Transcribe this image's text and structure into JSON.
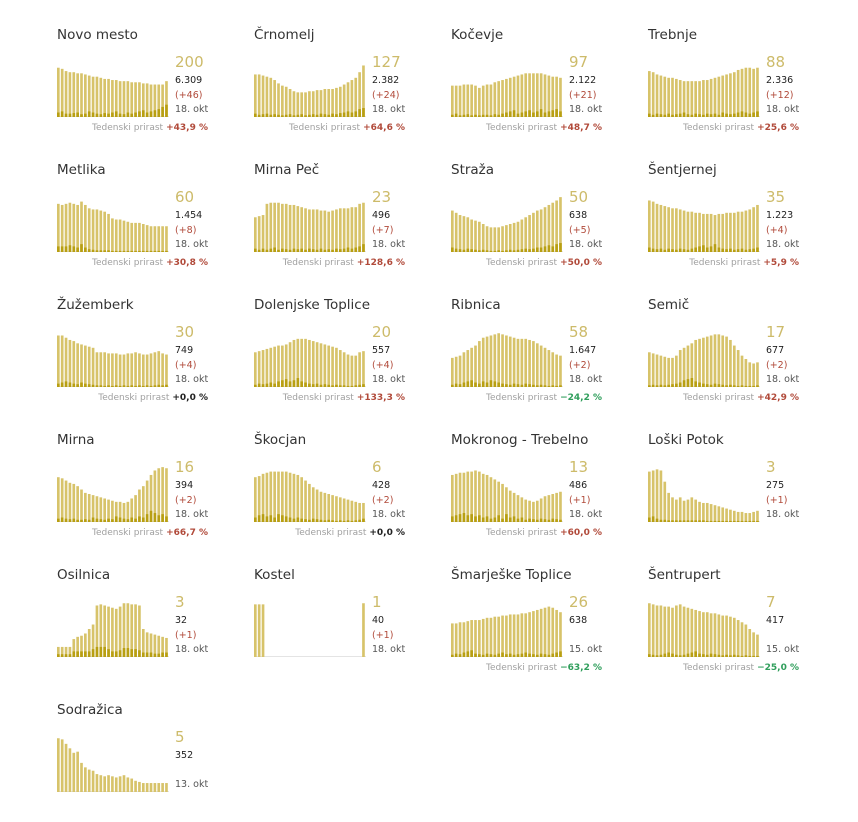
{
  "colors": {
    "bar_total": "#d7c36a",
    "bar_new": "#b89f12",
    "active_text": "#cdbb6a",
    "delta_up": "#b14a3a",
    "delta_down": "#2f9e5b"
  },
  "weekly_label": "Tedenski prirast",
  "municipalities": [
    {
      "name": "Novo mesto",
      "active": "200",
      "total": "6.309",
      "delta": "(+46)",
      "date": "18. okt",
      "weekly": "+43,9 %",
      "trend": "up",
      "bars": [
        88,
        86,
        82,
        80,
        80,
        78,
        78,
        76,
        74,
        72,
        72,
        70,
        68,
        68,
        66,
        66,
        64,
        64,
        64,
        62,
        62,
        62,
        60,
        60,
        58,
        58,
        58,
        58,
        64
      ],
      "new": [
        8,
        10,
        6,
        6,
        7,
        8,
        5,
        6,
        10,
        8,
        6,
        5,
        7,
        6,
        8,
        10,
        6,
        5,
        8,
        6,
        8,
        10,
        12,
        8,
        10,
        12,
        14,
        18,
        22
      ]
    },
    {
      "name": "Črnomelj",
      "active": "127",
      "total": "2.382",
      "delta": "(+24)",
      "date": "18. okt",
      "weekly": "+64,6 %",
      "trend": "up",
      "bars": [
        76,
        76,
        74,
        72,
        70,
        66,
        60,
        56,
        54,
        50,
        46,
        44,
        44,
        44,
        46,
        46,
        48,
        48,
        50,
        50,
        50,
        52,
        54,
        58,
        62,
        66,
        70,
        80,
        92
      ],
      "new": [
        6,
        4,
        5,
        6,
        4,
        5,
        4,
        3,
        4,
        5,
        3,
        4,
        5,
        3,
        4,
        5,
        4,
        6,
        5,
        4,
        6,
        5,
        7,
        8,
        10,
        8,
        10,
        14,
        16
      ]
    },
    {
      "name": "Kočevje",
      "active": "97",
      "total": "2.122",
      "delta": "(+21)",
      "date": "18. okt",
      "weekly": "+48,7 %",
      "trend": "up",
      "bars": [
        56,
        56,
        56,
        58,
        58,
        58,
        56,
        52,
        56,
        58,
        58,
        62,
        64,
        66,
        68,
        70,
        72,
        74,
        76,
        78,
        78,
        78,
        78,
        78,
        76,
        74,
        72,
        72,
        70
      ],
      "new": [
        4,
        6,
        3,
        4,
        5,
        3,
        4,
        3,
        4,
        4,
        3,
        5,
        4,
        6,
        8,
        10,
        12,
        6,
        8,
        10,
        12,
        8,
        10,
        14,
        8,
        10,
        12,
        14,
        10
      ]
    },
    {
      "name": "Trebnje",
      "active": "88",
      "total": "2.336",
      "delta": "(+12)",
      "date": "18. okt",
      "weekly": "+25,6 %",
      "trend": "up",
      "bars": [
        82,
        80,
        76,
        74,
        72,
        70,
        70,
        68,
        66,
        64,
        64,
        64,
        64,
        64,
        66,
        66,
        68,
        70,
        72,
        74,
        76,
        78,
        80,
        84,
        86,
        88,
        88,
        86,
        88
      ],
      "new": [
        6,
        4,
        6,
        5,
        4,
        6,
        4,
        5,
        6,
        8,
        5,
        4,
        6,
        5,
        4,
        6,
        5,
        6,
        4,
        8,
        6,
        5,
        6,
        8,
        10,
        8,
        6,
        8,
        10
      ]
    },
    {
      "name": "Metlika",
      "active": "60",
      "total": "1.454",
      "delta": "(+8)",
      "date": "18. okt",
      "weekly": "+30,8 %",
      "trend": "up",
      "bars": [
        86,
        84,
        86,
        88,
        86,
        84,
        90,
        84,
        78,
        76,
        76,
        74,
        72,
        68,
        60,
        58,
        58,
        56,
        54,
        52,
        52,
        52,
        50,
        48,
        46,
        46,
        46,
        46,
        46
      ],
      "new": [
        10,
        10,
        10,
        12,
        10,
        8,
        14,
        8,
        5,
        4,
        3,
        3,
        3,
        3,
        2,
        2,
        2,
        2,
        2,
        2,
        2,
        2,
        2,
        2,
        2,
        2,
        2,
        2,
        2
      ]
    },
    {
      "name": "Mirna Peč",
      "active": "23",
      "total": "496",
      "delta": "(+7)",
      "date": "18. okt",
      "weekly": "+128,6 %",
      "trend": "up",
      "bars": [
        62,
        64,
        66,
        86,
        88,
        88,
        88,
        86,
        86,
        84,
        84,
        82,
        80,
        78,
        76,
        76,
        76,
        74,
        74,
        72,
        74,
        76,
        78,
        78,
        78,
        80,
        80,
        86,
        88
      ],
      "new": [
        6,
        4,
        6,
        4,
        6,
        8,
        4,
        6,
        5,
        4,
        6,
        5,
        6,
        4,
        6,
        5,
        4,
        6,
        4,
        5,
        4,
        6,
        5,
        6,
        8,
        6,
        8,
        10,
        14
      ]
    },
    {
      "name": "Straža",
      "active": "50",
      "total": "638",
      "delta": "(+5)",
      "date": "18. okt",
      "weekly": "+50,0 %",
      "trend": "up",
      "bars": [
        74,
        70,
        66,
        64,
        62,
        58,
        56,
        54,
        50,
        46,
        44,
        44,
        44,
        46,
        48,
        50,
        52,
        54,
        58,
        62,
        66,
        70,
        74,
        76,
        80,
        84,
        88,
        92,
        98
      ],
      "new": [
        8,
        6,
        5,
        4,
        6,
        5,
        4,
        3,
        4,
        3,
        2,
        2,
        3,
        2,
        3,
        4,
        3,
        4,
        5,
        6,
        5,
        6,
        8,
        8,
        10,
        12,
        10,
        14,
        16
      ]
    },
    {
      "name": "Šentjernej",
      "active": "35",
      "total": "1.223",
      "delta": "(+4)",
      "date": "18. okt",
      "weekly": "+5,9 %",
      "trend": "up",
      "bars": [
        92,
        90,
        86,
        84,
        82,
        80,
        78,
        78,
        76,
        74,
        72,
        72,
        70,
        70,
        68,
        68,
        68,
        66,
        68,
        68,
        70,
        70,
        70,
        72,
        72,
        74,
        76,
        80,
        84
      ],
      "new": [
        8,
        6,
        5,
        6,
        4,
        6,
        5,
        4,
        6,
        5,
        4,
        6,
        8,
        10,
        12,
        8,
        10,
        14,
        8,
        6,
        5,
        6,
        4,
        5,
        6,
        4,
        5,
        6,
        8
      ]
    },
    {
      "name": "Žužemberk",
      "active": "30",
      "total": "749",
      "delta": "(+4)",
      "date": "18. okt",
      "weekly": "+0,0 %",
      "trend": "zero",
      "bars": [
        92,
        92,
        88,
        84,
        82,
        78,
        76,
        74,
        72,
        70,
        62,
        62,
        62,
        60,
        60,
        60,
        58,
        58,
        60,
        60,
        62,
        60,
        58,
        58,
        60,
        62,
        64,
        60,
        58
      ],
      "new": [
        6,
        8,
        10,
        8,
        6,
        5,
        8,
        6,
        5,
        4,
        3,
        3,
        2,
        3,
        2,
        3,
        2,
        3,
        2,
        3,
        2,
        3,
        2,
        3,
        2,
        3,
        4,
        3,
        4
      ]
    },
    {
      "name": "Dolenjske Toplice",
      "active": "20",
      "total": "557",
      "delta": "(+4)",
      "date": "18. okt",
      "weekly": "+133,3 %",
      "trend": "up",
      "bars": [
        62,
        64,
        66,
        68,
        70,
        72,
        74,
        74,
        76,
        80,
        84,
        86,
        86,
        86,
        84,
        82,
        80,
        78,
        76,
        74,
        72,
        70,
        66,
        62,
        58,
        56,
        56,
        62,
        64
      ],
      "new": [
        4,
        6,
        5,
        6,
        8,
        6,
        10,
        12,
        14,
        10,
        12,
        16,
        10,
        8,
        6,
        5,
        6,
        4,
        5,
        4,
        3,
        4,
        3,
        3,
        2,
        2,
        3,
        4,
        5
      ]
    },
    {
      "name": "Ribnica",
      "active": "58",
      "total": "1.647",
      "delta": "(+2)",
      "date": "18. okt",
      "weekly": "−24,2 %",
      "trend": "down",
      "bars": [
        52,
        54,
        56,
        62,
        66,
        70,
        74,
        82,
        88,
        90,
        92,
        94,
        96,
        94,
        92,
        90,
        88,
        86,
        86,
        86,
        84,
        82,
        78,
        74,
        70,
        66,
        62,
        58,
        56
      ],
      "new": [
        4,
        6,
        5,
        8,
        10,
        12,
        8,
        6,
        10,
        8,
        12,
        10,
        8,
        6,
        5,
        4,
        6,
        5,
        4,
        6,
        5,
        4,
        3,
        4,
        3,
        2,
        3,
        2,
        3
      ]
    },
    {
      "name": "Semič",
      "active": "17",
      "total": "677",
      "delta": "(+2)",
      "date": "18. okt",
      "weekly": "+42,9 %",
      "trend": "up",
      "bars": [
        62,
        60,
        58,
        56,
        54,
        52,
        52,
        56,
        66,
        70,
        74,
        78,
        84,
        86,
        88,
        90,
        92,
        94,
        94,
        92,
        90,
        84,
        74,
        66,
        56,
        50,
        44,
        42,
        44
      ],
      "new": [
        3,
        4,
        3,
        4,
        3,
        4,
        5,
        6,
        8,
        12,
        14,
        16,
        10,
        8,
        6,
        5,
        4,
        6,
        5,
        4,
        3,
        4,
        3,
        2,
        3,
        2,
        2,
        2,
        3
      ]
    },
    {
      "name": "Mirna",
      "active": "16",
      "total": "394",
      "delta": "(+2)",
      "date": "18. okt",
      "weekly": "+66,7 %",
      "trend": "up",
      "bars": [
        80,
        78,
        74,
        70,
        68,
        64,
        58,
        52,
        50,
        48,
        46,
        44,
        42,
        40,
        38,
        36,
        36,
        34,
        36,
        42,
        48,
        58,
        64,
        74,
        84,
        92,
        96,
        98,
        96
      ],
      "new": [
        6,
        8,
        6,
        5,
        6,
        4,
        4,
        5,
        4,
        8,
        6,
        5,
        4,
        6,
        5,
        10,
        8,
        6,
        5,
        8,
        6,
        10,
        8,
        14,
        20,
        16,
        12,
        14,
        10
      ]
    },
    {
      "name": "Škocjan",
      "active": "6",
      "total": "428",
      "delta": "(+2)",
      "date": "18. okt",
      "weekly": "+0,0 %",
      "trend": "zero",
      "bars": [
        80,
        82,
        86,
        88,
        90,
        90,
        90,
        90,
        90,
        88,
        86,
        84,
        80,
        74,
        68,
        62,
        58,
        54,
        52,
        50,
        48,
        46,
        44,
        42,
        40,
        38,
        36,
        34,
        34
      ],
      "new": [
        8,
        12,
        14,
        10,
        12,
        8,
        14,
        12,
        10,
        8,
        6,
        8,
        6,
        5,
        4,
        6,
        5,
        4,
        3,
        4,
        3,
        2,
        3,
        2,
        3,
        2,
        3,
        4,
        6
      ]
    },
    {
      "name": "Mokronog - Trebelno",
      "active": "13",
      "total": "486",
      "delta": "(+1)",
      "date": "18. okt",
      "weekly": "+60,0 %",
      "trend": "up",
      "bars": [
        84,
        86,
        88,
        88,
        90,
        90,
        92,
        90,
        86,
        84,
        80,
        76,
        72,
        68,
        62,
        56,
        52,
        48,
        44,
        40,
        38,
        36,
        38,
        42,
        46,
        48,
        50,
        52,
        54
      ],
      "new": [
        10,
        12,
        14,
        16,
        12,
        14,
        10,
        12,
        8,
        10,
        6,
        8,
        12,
        6,
        14,
        8,
        10,
        6,
        8,
        4,
        6,
        5,
        4,
        6,
        5,
        4,
        6,
        5,
        4
      ]
    },
    {
      "name": "Loški Potok",
      "active": "3",
      "total": "275",
      "delta": "(+1)",
      "date": "18. okt",
      "weekly": "",
      "trend": "up",
      "bars": [
        90,
        92,
        94,
        92,
        72,
        52,
        44,
        40,
        44,
        38,
        40,
        44,
        40,
        36,
        34,
        34,
        32,
        30,
        28,
        26,
        24,
        22,
        20,
        18,
        18,
        16,
        16,
        18,
        20
      ],
      "new": [
        8,
        10,
        6,
        4,
        4,
        3,
        3,
        3,
        3,
        3,
        3,
        3,
        3,
        3,
        3,
        2,
        2,
        2,
        2,
        2,
        2,
        2,
        2,
        2,
        2,
        2,
        2,
        2,
        2
      ]
    },
    {
      "name": "Osilnica",
      "active": "3",
      "total": "32",
      "delta": "(+1)",
      "date": "18. okt",
      "weekly": "",
      "trend": "up",
      "bars": [
        18,
        18,
        18,
        18,
        32,
        36,
        38,
        42,
        50,
        58,
        92,
        94,
        92,
        90,
        88,
        86,
        90,
        96,
        96,
        94,
        94,
        92,
        50,
        44,
        42,
        40,
        38,
        36,
        34
      ],
      "new": [
        5,
        5,
        5,
        5,
        10,
        10,
        10,
        10,
        10,
        14,
        18,
        18,
        18,
        14,
        10,
        10,
        12,
        16,
        16,
        14,
        14,
        12,
        8,
        8,
        8,
        6,
        6,
        8,
        8
      ]
    },
    {
      "name": "Kostel",
      "active": "1",
      "total": "40",
      "delta": "(+1)",
      "date": "18. okt",
      "weekly": "",
      "trend": "up",
      "bars": [
        94,
        94,
        94,
        0,
        0,
        0,
        0,
        0,
        0,
        0,
        0,
        0,
        0,
        0,
        0,
        0,
        0,
        0,
        0,
        0,
        0,
        0,
        0,
        0,
        0,
        0,
        0,
        0,
        96
      ],
      "new": [
        0,
        0,
        0,
        0,
        0,
        0,
        0,
        0,
        0,
        0,
        0,
        0,
        0,
        0,
        0,
        0,
        0,
        0,
        0,
        0,
        0,
        0,
        0,
        0,
        0,
        0,
        0,
        0,
        0
      ]
    },
    {
      "name": "Šmarješke Toplice",
      "active": "26",
      "total": "638",
      "delta": "",
      "date": "15. okt",
      "weekly": "−63,2 %",
      "trend": "down",
      "bars": [
        60,
        60,
        62,
        62,
        64,
        66,
        66,
        66,
        68,
        70,
        70,
        72,
        72,
        74,
        74,
        76,
        76,
        76,
        78,
        78,
        80,
        82,
        84,
        86,
        88,
        90,
        88,
        84,
        80
      ],
      "new": [
        4,
        6,
        5,
        8,
        10,
        12,
        6,
        5,
        4,
        6,
        5,
        4,
        6,
        8,
        5,
        6,
        4,
        5,
        6,
        8,
        6,
        5,
        4,
        6,
        5,
        4,
        6,
        8,
        10
      ]
    },
    {
      "name": "Šentrupert",
      "active": "7",
      "total": "417",
      "delta": "",
      "date": "15. okt",
      "weekly": "−25,0 %",
      "trend": "down",
      "bars": [
        96,
        94,
        92,
        92,
        90,
        90,
        88,
        92,
        94,
        90,
        88,
        86,
        84,
        82,
        80,
        80,
        78,
        78,
        76,
        74,
        74,
        72,
        70,
        66,
        62,
        58,
        50,
        44,
        40
      ],
      "new": [
        5,
        4,
        3,
        4,
        6,
        8,
        6,
        4,
        3,
        4,
        6,
        8,
        10,
        6,
        5,
        4,
        6,
        5,
        4,
        3,
        4,
        3,
        4,
        3,
        2,
        3,
        2,
        2,
        2
      ]
    },
    {
      "name": "Sodražica",
      "active": "5",
      "total": "352",
      "delta": "",
      "date": "13. okt",
      "weekly": "",
      "trend": "up",
      "bars": [
        96,
        94,
        86,
        78,
        70,
        72,
        52,
        44,
        40,
        38,
        32,
        30,
        28,
        30,
        28,
        26,
        28,
        30,
        26,
        24,
        20,
        18,
        16,
        16,
        16,
        16,
        16,
        16,
        16
      ],
      "new": [
        0,
        0,
        0,
        0,
        0,
        0,
        0,
        0,
        0,
        0,
        0,
        0,
        0,
        0,
        0,
        0,
        0,
        0,
        0,
        0,
        0,
        0,
        0,
        0,
        0,
        0,
        0,
        0,
        0
      ]
    }
  ]
}
